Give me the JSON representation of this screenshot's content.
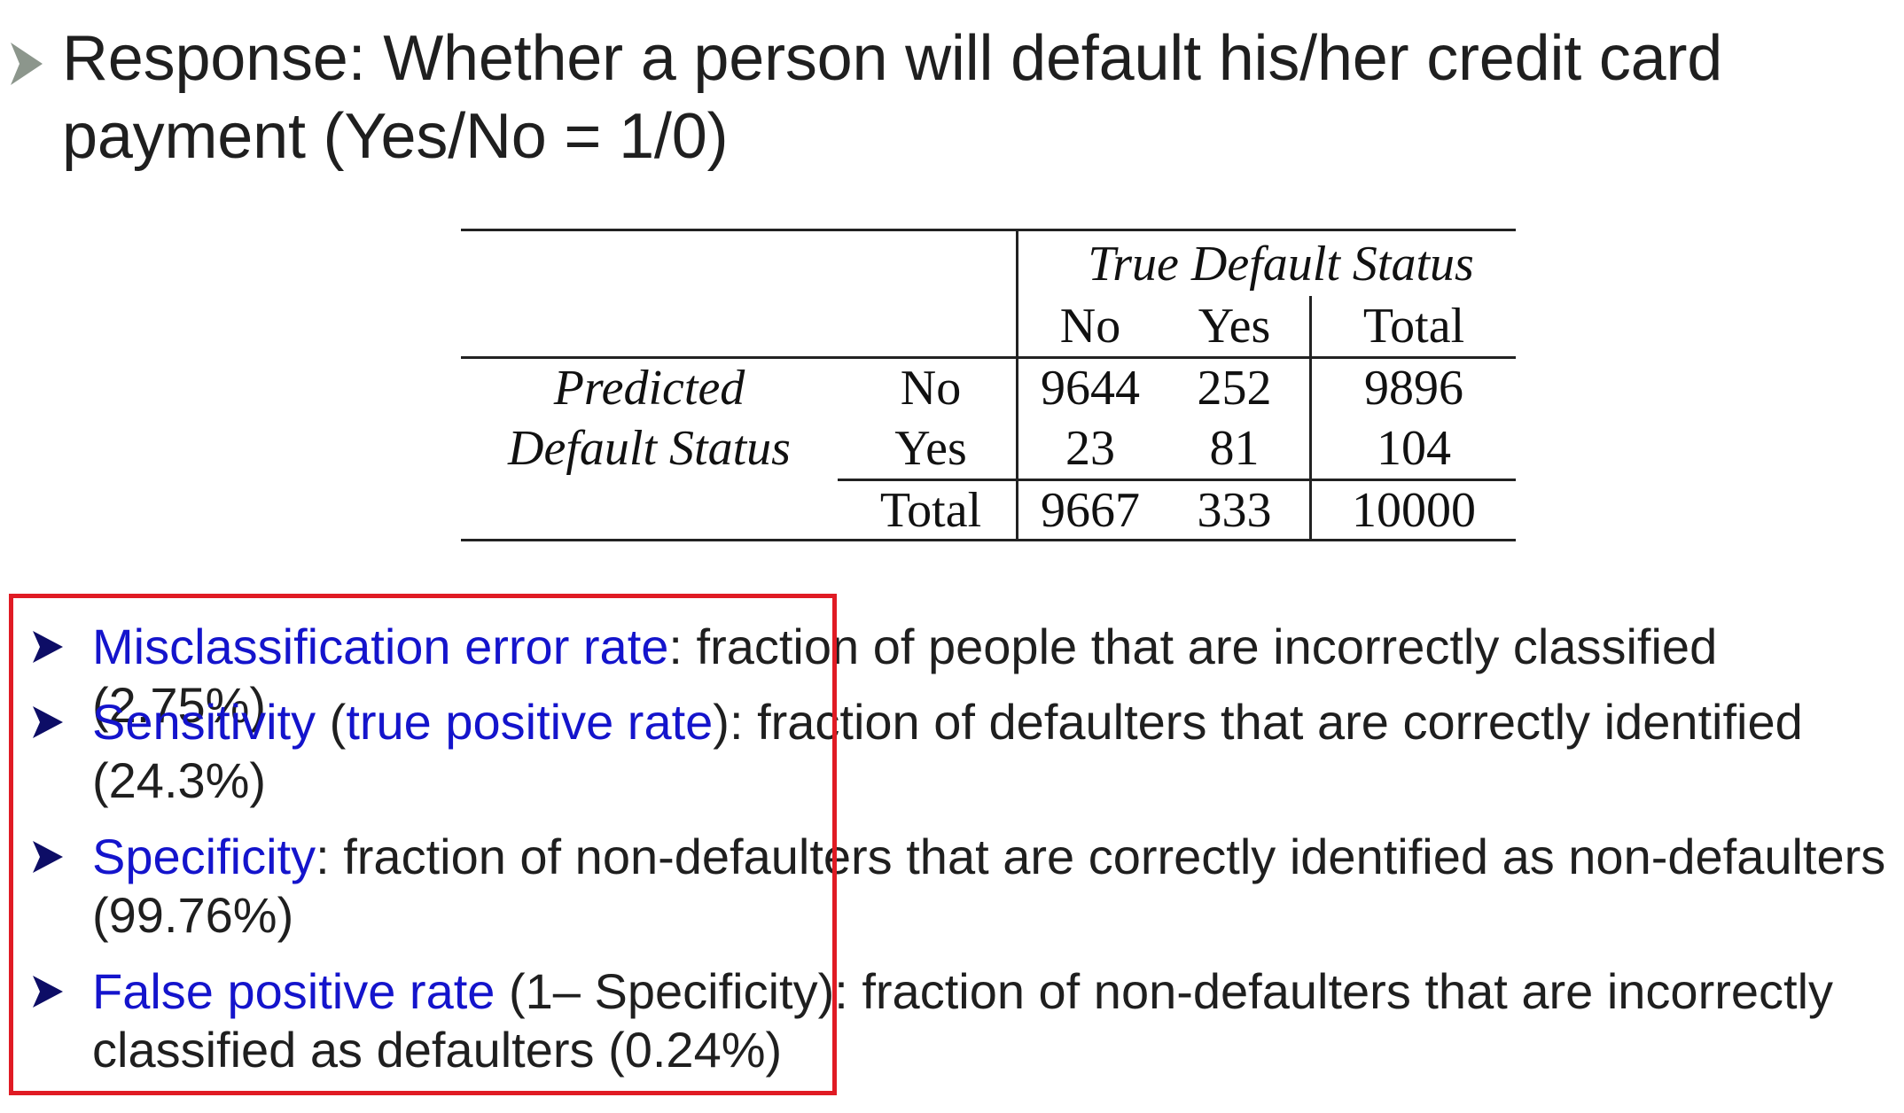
{
  "header": {
    "line1": "Response: Whether a person will default his/her credit card",
    "line2": "payment (Yes/No = 1/0)"
  },
  "table": {
    "col_group_label": "True Default Status",
    "col_headers": [
      "No",
      "Yes",
      "Total"
    ],
    "row_group_label_line1": "Predicted",
    "row_group_label_line2": "Default Status",
    "rows": [
      {
        "label": "No",
        "values": [
          "9644",
          "252",
          "9896"
        ]
      },
      {
        "label": "Yes",
        "values": [
          "23",
          "81",
          "104"
        ]
      },
      {
        "label": "Total",
        "values": [
          "9667",
          "333",
          "10000"
        ]
      }
    ]
  },
  "bullets": [
    {
      "term": "Misclassification error rate",
      "rest": ": fraction of people that are incorrectly classified (2.75%)"
    },
    {
      "term": "Sensitivity",
      "mid_open": " (",
      "term2": "true positive rate",
      "rest": "): fraction of defaulters that are correctly identified",
      "line2": "(24.3%)"
    },
    {
      "term": "Specificity",
      "rest": ": fraction of non-defaulters that are correctly identified as non-defaulters",
      "line2": "(99.76%)"
    },
    {
      "term": "False positive rate",
      "rest": " (1– Specificity): fraction of non-defaulters that are incorrectly",
      "line2": "classified as defaulters (0.24%)"
    }
  ],
  "colors": {
    "term_blue": "#1414cc",
    "highlight_box": "#e01b24",
    "arrow_gray": "#8c968c",
    "arrow_navy": "#0d0d66"
  }
}
